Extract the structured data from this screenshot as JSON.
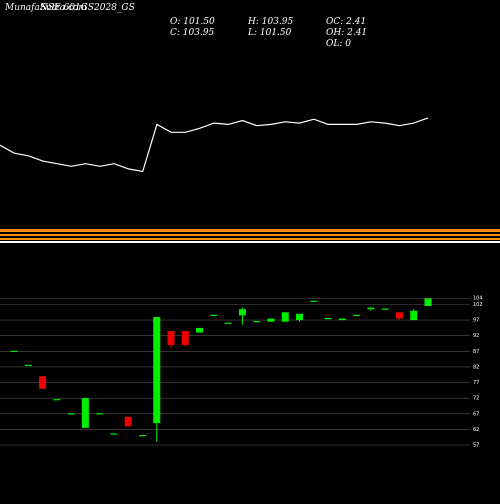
{
  "header": {
    "title": "MunafaSutra.com",
    "symbol": "NSE 601GS2028_GS",
    "open": "O: 101.50",
    "close": "C: 103.95",
    "high": "H: 103.95",
    "low": "L: 101.50",
    "oc": "OC: 2.41",
    "oh": "OH: 2.41",
    "ol": "OL: 0"
  },
  "colors": {
    "background": "#000000",
    "line": "#ffffff",
    "up": "#00ee00",
    "down": "#ee0000",
    "band": "#ff8c00",
    "grid": "#555555"
  },
  "chart_data": [
    {
      "type": "line",
      "y": [
        98,
        92,
        90,
        86,
        84,
        82,
        84,
        82,
        84,
        80,
        78,
        114,
        108,
        108,
        111,
        115,
        114,
        117,
        113,
        114,
        116,
        115,
        118,
        114,
        114,
        114,
        116,
        115,
        113,
        115,
        119
      ]
    },
    {
      "type": "candlestick",
      "ylim": [
        57,
        106
      ],
      "yticks": [
        104,
        102,
        97,
        92,
        87,
        82,
        77,
        72,
        67,
        62,
        57
      ],
      "candles": [
        {
          "o": 87.0,
          "h": 87.0,
          "l": 87.0,
          "c": 87.0
        },
        {
          "o": 82.5,
          "h": 82.5,
          "l": 82.5,
          "c": 82.5
        },
        {
          "o": 79.0,
          "h": 79.0,
          "l": 75.0,
          "c": 75.0
        },
        {
          "o": 71.5,
          "h": 71.5,
          "l": 71.5,
          "c": 71.5
        },
        {
          "o": 67.0,
          "h": 67.0,
          "l": 67.0,
          "c": 67.0
        },
        {
          "o": 62.5,
          "h": 72.0,
          "l": 62.5,
          "c": 72.0
        },
        {
          "o": 67.0,
          "h": 67.0,
          "l": 67.0,
          "c": 67.0
        },
        {
          "o": 60.5,
          "h": 60.5,
          "l": 60.5,
          "c": 60.5
        },
        {
          "o": 66.0,
          "h": 66.0,
          "l": 63.0,
          "c": 63.0
        },
        {
          "o": 60.0,
          "h": 60.0,
          "l": 60.0,
          "c": 60.0
        },
        {
          "o": 64.0,
          "h": 98.0,
          "l": 58.0,
          "c": 98.0
        },
        {
          "o": 93.5,
          "h": 93.5,
          "l": 88.0,
          "c": 89.0
        },
        {
          "o": 93.5,
          "h": 93.5,
          "l": 88.5,
          "c": 89.0
        },
        {
          "o": 93.0,
          "h": 94.5,
          "l": 93.0,
          "c": 94.5
        },
        {
          "o": 98.5,
          "h": 98.5,
          "l": 98.5,
          "c": 98.5
        },
        {
          "o": 96.0,
          "h": 96.0,
          "l": 96.0,
          "c": 96.0
        },
        {
          "o": 98.5,
          "h": 101.0,
          "l": 95.5,
          "c": 100.5
        },
        {
          "o": 96.5,
          "h": 96.5,
          "l": 96.5,
          "c": 96.5
        },
        {
          "o": 96.5,
          "h": 97.5,
          "l": 96.5,
          "c": 97.5
        },
        {
          "o": 96.5,
          "h": 99.5,
          "l": 96.5,
          "c": 99.5
        },
        {
          "o": 97.0,
          "h": 99.0,
          "l": 96.5,
          "c": 99.0
        },
        {
          "o": 103.0,
          "h": 103.0,
          "l": 103.0,
          "c": 103.0
        },
        {
          "o": 97.5,
          "h": 97.5,
          "l": 97.5,
          "c": 97.5
        },
        {
          "o": 97.0,
          "h": 97.5,
          "l": 97.0,
          "c": 97.5
        },
        {
          "o": 98.5,
          "h": 98.5,
          "l": 98.5,
          "c": 98.5
        },
        {
          "o": 100.5,
          "h": 101.0,
          "l": 100.0,
          "c": 101.0
        },
        {
          "o": 100.5,
          "h": 100.5,
          "l": 100.5,
          "c": 100.5
        },
        {
          "o": 99.5,
          "h": 99.5,
          "l": 97.0,
          "c": 97.5
        },
        {
          "o": 97.0,
          "h": 100.5,
          "l": 97.0,
          "c": 100.0
        },
        {
          "o": 101.5,
          "h": 103.95,
          "l": 101.5,
          "c": 103.95
        }
      ]
    }
  ]
}
